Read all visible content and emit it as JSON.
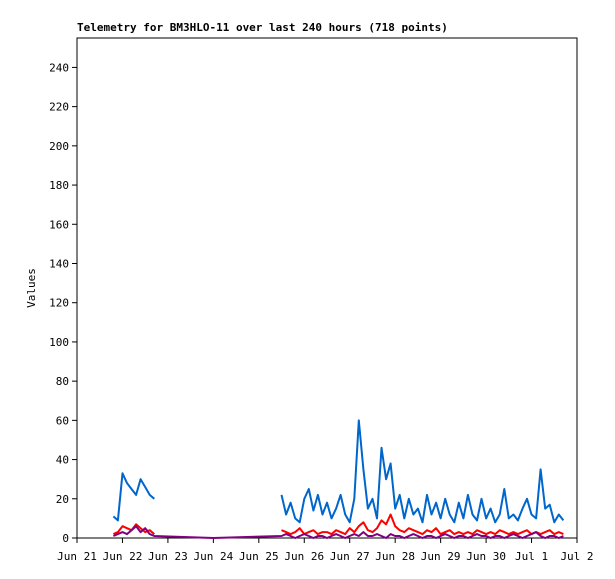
{
  "chart_data": {
    "type": "line",
    "title": "Telemetry for BM3HLO-11 over last 240 hours (718 points)",
    "y_label": "Values",
    "x": [
      0.8,
      0.9,
      1.0,
      1.1,
      1.2,
      1.3,
      1.4,
      1.5,
      1.6,
      1.7,
      3.0,
      4.5,
      4.6,
      4.7,
      4.8,
      4.9,
      5.0,
      5.1,
      5.2,
      5.3,
      5.4,
      5.5,
      5.6,
      5.7,
      5.8,
      5.9,
      6.0,
      6.1,
      6.2,
      6.3,
      6.4,
      6.5,
      6.6,
      6.7,
      6.8,
      6.9,
      7.0,
      7.1,
      7.2,
      7.3,
      7.4,
      7.5,
      7.6,
      7.7,
      7.8,
      7.9,
      8.0,
      8.1,
      8.2,
      8.3,
      8.4,
      8.5,
      8.6,
      8.7,
      8.8,
      8.9,
      9.0,
      9.1,
      9.2,
      9.3,
      9.4,
      9.5,
      9.6,
      9.7,
      9.8,
      9.9,
      10.0,
      10.1,
      10.2,
      10.3,
      10.4,
      10.5,
      10.6,
      10.7
    ],
    "series": [
      {
        "color": "#0066cc",
        "values": [
          11,
          9,
          33,
          28,
          25,
          22,
          30,
          26,
          22,
          20,
          null,
          22,
          12,
          18,
          10,
          8,
          20,
          25,
          14,
          22,
          12,
          18,
          10,
          15,
          22,
          12,
          8,
          20,
          60,
          35,
          15,
          20,
          10,
          46,
          30,
          38,
          15,
          22,
          10,
          20,
          12,
          15,
          8,
          22,
          12,
          18,
          10,
          20,
          12,
          8,
          18,
          10,
          22,
          12,
          9,
          20,
          10,
          15,
          8,
          12,
          25,
          10,
          12,
          9,
          15,
          20,
          12,
          10,
          35,
          15,
          17,
          8,
          12,
          9
        ]
      },
      {
        "color": "#ff0000",
        "values": [
          2,
          3,
          6,
          5,
          4,
          7,
          5,
          3,
          4,
          2,
          null,
          4,
          3,
          2,
          3,
          5,
          2,
          3,
          4,
          2,
          3,
          3,
          2,
          4,
          3,
          2,
          5,
          3,
          6,
          8,
          4,
          3,
          5,
          9,
          7,
          12,
          6,
          4,
          3,
          5,
          4,
          3,
          2,
          4,
          3,
          5,
          2,
          3,
          4,
          2,
          3,
          2,
          3,
          2,
          4,
          3,
          2,
          3,
          2,
          4,
          3,
          2,
          3,
          2,
          3,
          4,
          2,
          3,
          2,
          3,
          4,
          2,
          3,
          2
        ]
      },
      {
        "color": "#800080",
        "values": [
          1,
          2,
          3,
          2,
          4,
          6,
          3,
          5,
          2,
          1,
          0,
          1,
          2,
          1,
          0,
          1,
          2,
          1,
          0,
          1,
          1,
          0,
          1,
          2,
          1,
          0,
          1,
          2,
          1,
          3,
          1,
          1,
          2,
          1,
          0,
          2,
          1,
          1,
          0,
          1,
          2,
          1,
          0,
          1,
          1,
          0,
          1,
          2,
          1,
          0,
          1,
          1,
          0,
          1,
          2,
          1,
          1,
          0,
          1,
          1,
          0,
          1,
          2,
          1,
          0,
          1,
          2,
          3,
          1,
          0,
          1,
          1,
          0,
          1
        ]
      }
    ],
    "xlim": [
      0,
      11
    ],
    "xticks": [
      {
        "value": 0,
        "label": "Jun 21"
      },
      {
        "value": 1,
        "label": "Jun 22"
      },
      {
        "value": 2,
        "label": "Jun 23"
      },
      {
        "value": 3,
        "label": "Jun 24"
      },
      {
        "value": 4,
        "label": "Jun 25"
      },
      {
        "value": 5,
        "label": "Jun 26"
      },
      {
        "value": 6,
        "label": "Jun 27"
      },
      {
        "value": 7,
        "label": "Jun 28"
      },
      {
        "value": 8,
        "label": "Jun 29"
      },
      {
        "value": 9,
        "label": "Jun 30"
      },
      {
        "value": 10,
        "label": "Jul 1"
      },
      {
        "value": 11,
        "label": "Jul 2"
      }
    ],
    "ylim": [
      0,
      255
    ],
    "yticks": [
      0,
      20,
      40,
      60,
      80,
      100,
      120,
      140,
      160,
      180,
      200,
      220,
      240
    ]
  }
}
